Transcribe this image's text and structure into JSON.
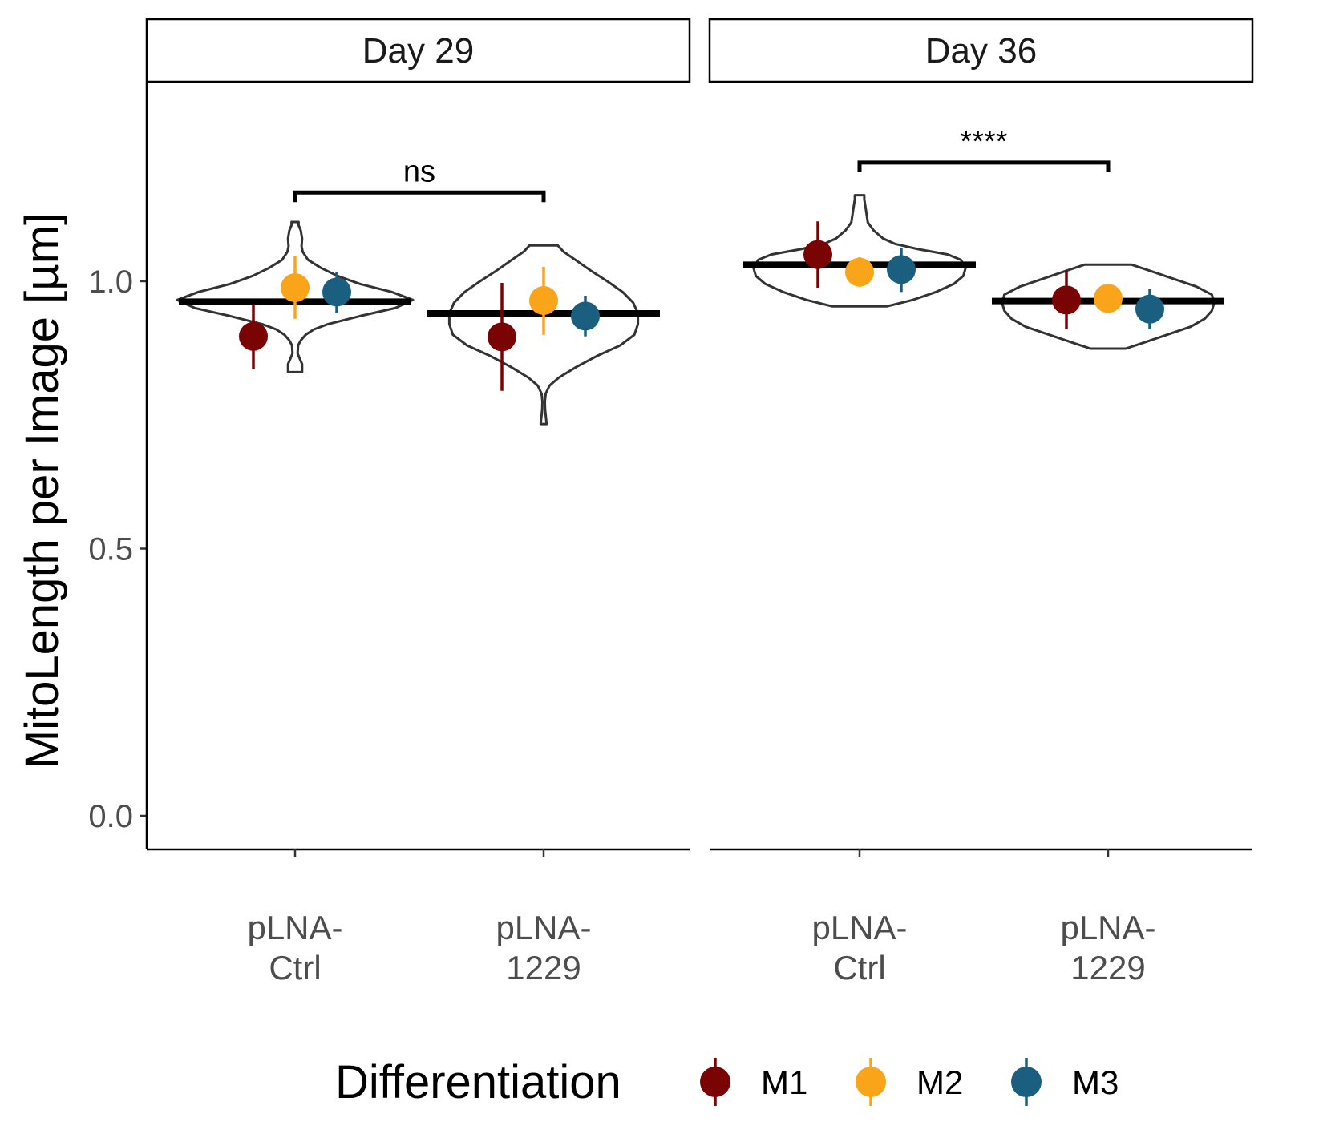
{
  "chart_data": {
    "type": "violin",
    "ylabel": "MitoLength per Image [µm]",
    "ylim": [
      -0.06,
      1.37
    ],
    "yticks": [
      {
        "value": 0.0,
        "label": "0.0"
      },
      {
        "value": 0.5,
        "label": "0.5"
      },
      {
        "value": 1.0,
        "label": "1.0"
      }
    ],
    "legend": {
      "title": "Differentiation",
      "position": "bottom",
      "items": [
        {
          "name": "M1",
          "color": "#7A0403"
        },
        {
          "name": "M2",
          "color": "#FAA41A"
        },
        {
          "name": "M3",
          "color": "#1A5E80"
        }
      ]
    },
    "panels": [
      {
        "title": "Day 29",
        "categories": [
          {
            "label_lines": [
              "pLNA-",
              "Ctrl"
            ],
            "median": 0.962,
            "violin": {
              "profile": [
                [
                  0.83,
                  0.06
                ],
                [
                  0.845,
                  0.06
                ],
                [
                  0.855,
                  0.04
                ],
                [
                  0.865,
                  0.022
                ],
                [
                  0.88,
                  0.026
                ],
                [
                  0.89,
                  0.05
                ],
                [
                  0.9,
                  0.09
                ],
                [
                  0.91,
                  0.16
                ],
                [
                  0.92,
                  0.28
                ],
                [
                  0.935,
                  0.55
                ],
                [
                  0.95,
                  0.85
                ],
                [
                  0.965,
                  1.0
                ],
                [
                  0.98,
                  0.82
                ],
                [
                  0.995,
                  0.55
                ],
                [
                  1.01,
                  0.36
                ],
                [
                  1.025,
                  0.22
                ],
                [
                  1.04,
                  0.11
                ],
                [
                  1.055,
                  0.065
                ],
                [
                  1.065,
                  0.055
                ],
                [
                  1.08,
                  0.06
                ],
                [
                  1.095,
                  0.048
                ],
                [
                  1.105,
                  0.03
                ],
                [
                  1.111,
                  0.03
                ]
              ]
            },
            "points": [
              {
                "name": "M1",
                "y": 0.897,
                "lo": 0.836,
                "hi": 0.957
              },
              {
                "name": "M2",
                "y": 0.988,
                "lo": 0.93,
                "hi": 1.047
              },
              {
                "name": "M3",
                "y": 0.98,
                "lo": 0.94,
                "hi": 1.017
              }
            ]
          },
          {
            "label_lines": [
              "pLNA-",
              "1229"
            ],
            "median": 0.94,
            "violin": {
              "profile": [
                [
                  0.733,
                  0.025
                ],
                [
                  0.745,
                  0.02
                ],
                [
                  0.76,
                  0.012
                ],
                [
                  0.775,
                  0.01
                ],
                [
                  0.79,
                  0.018
                ],
                [
                  0.805,
                  0.05
                ],
                [
                  0.82,
                  0.13
                ],
                [
                  0.84,
                  0.28
                ],
                [
                  0.86,
                  0.45
                ],
                [
                  0.88,
                  0.65
                ],
                [
                  0.9,
                  0.77
                ],
                [
                  0.92,
                  0.8
                ],
                [
                  0.94,
                  0.8
                ],
                [
                  0.96,
                  0.76
                ],
                [
                  0.98,
                  0.67
                ],
                [
                  1.0,
                  0.54
                ],
                [
                  1.02,
                  0.4
                ],
                [
                  1.04,
                  0.27
                ],
                [
                  1.055,
                  0.17
                ],
                [
                  1.067,
                  0.12
                ]
              ]
            },
            "points": [
              {
                "name": "M1",
                "y": 0.896,
                "lo": 0.795,
                "hi": 0.997
              },
              {
                "name": "M2",
                "y": 0.964,
                "lo": 0.9,
                "hi": 1.027
              },
              {
                "name": "M3",
                "y": 0.935,
                "lo": 0.897,
                "hi": 0.973
              }
            ]
          }
        ],
        "annotation": "ns",
        "bracket_y": 1.166
      },
      {
        "title": "Day 36",
        "categories": [
          {
            "label_lines": [
              "pLNA-",
              "Ctrl"
            ],
            "median": 1.031,
            "violin": {
              "profile": [
                [
                  0.953,
                  0.23
                ],
                [
                  0.965,
                  0.45
                ],
                [
                  0.98,
                  0.65
                ],
                [
                  0.995,
                  0.8
                ],
                [
                  1.01,
                  0.88
                ],
                [
                  1.025,
                  0.9
                ],
                [
                  1.04,
                  0.86
                ],
                [
                  1.05,
                  0.75
                ],
                [
                  1.06,
                  0.5
                ],
                [
                  1.07,
                  0.3
                ],
                [
                  1.08,
                  0.2
                ],
                [
                  1.095,
                  0.12
                ],
                [
                  1.11,
                  0.07
                ],
                [
                  1.125,
                  0.06
                ],
                [
                  1.14,
                  0.05
                ],
                [
                  1.153,
                  0.04
                ],
                [
                  1.161,
                  0.04
                ]
              ]
            },
            "points": [
              {
                "name": "M1",
                "y": 1.05,
                "lo": 0.988,
                "hi": 1.112
              },
              {
                "name": "M2",
                "y": 1.017,
                "lo": 0.99,
                "hi": 1.045
              },
              {
                "name": "M3",
                "y": 1.022,
                "lo": 0.98,
                "hi": 1.063
              }
            ]
          },
          {
            "label_lines": [
              "pLNA-",
              "1229"
            ],
            "median": 0.963,
            "violin": {
              "profile": [
                [
                  0.874,
                  0.15
                ],
                [
                  0.885,
                  0.3
                ],
                [
                  0.9,
                  0.5
                ],
                [
                  0.915,
                  0.7
                ],
                [
                  0.93,
                  0.82
                ],
                [
                  0.945,
                  0.88
                ],
                [
                  0.96,
                  0.9
                ],
                [
                  0.975,
                  0.88
                ],
                [
                  0.99,
                  0.75
                ],
                [
                  1.005,
                  0.55
                ],
                [
                  1.02,
                  0.35
                ],
                [
                  1.031,
                  0.2
                ]
              ]
            },
            "points": [
              {
                "name": "M1",
                "y": 0.965,
                "lo": 0.91,
                "hi": 1.02
              },
              {
                "name": "M2",
                "y": 0.968,
                "lo": 0.955,
                "hi": 0.982
              },
              {
                "name": "M3",
                "y": 0.948,
                "lo": 0.91,
                "hi": 0.985
              }
            ]
          }
        ],
        "annotation": "****",
        "bracket_y": 1.222
      }
    ]
  }
}
